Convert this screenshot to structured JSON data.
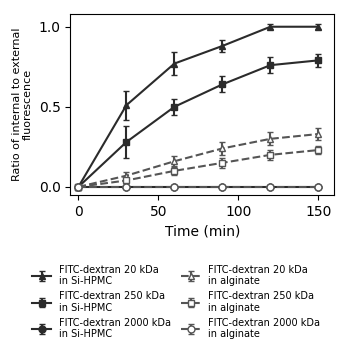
{
  "chart_data": {
    "type": "line",
    "title": "",
    "xlabel": "Time (min)",
    "ylabel": "Ratio of internal to external\nfluorescence",
    "xlim": [
      -5,
      160
    ],
    "ylim": [
      -0.05,
      1.08
    ],
    "xticks": [
      0,
      50,
      100,
      150
    ],
    "yticks": [
      0.0,
      0.5,
      1.0
    ],
    "legend": "lower center",
    "x": [
      0,
      30,
      60,
      90,
      120,
      150
    ],
    "series": [
      {
        "name": "FITC-dextran 20 kDa\nin Si-HPMC",
        "color": "#2b2b2b",
        "marker": "triangle",
        "line_style": "solid",
        "values": [
          0.0,
          0.51,
          0.77,
          0.88,
          1.0,
          1.0
        ],
        "errors": [
          0.0,
          0.09,
          0.07,
          0.04,
          0.015,
          0.015
        ]
      },
      {
        "name": "FITC-dextran 250 kDa\nin Si-HPMC",
        "color": "#2b2b2b",
        "marker": "square",
        "line_style": "solid",
        "values": [
          0.0,
          0.28,
          0.5,
          0.64,
          0.76,
          0.79
        ],
        "errors": [
          0.0,
          0.1,
          0.05,
          0.05,
          0.05,
          0.04
        ]
      },
      {
        "name": "FITC-dextran 2000 kDa\nin Si-HPMC",
        "color": "#2b2b2b",
        "marker": "circle",
        "line_style": "solid",
        "values": [
          0.0,
          0.0,
          0.0,
          0.0,
          0.0,
          0.0
        ],
        "errors": [
          0.0,
          0.0,
          0.0,
          0.0,
          0.0,
          0.0
        ]
      },
      {
        "name": "FITC-dextran 20 kDa\nin alginate",
        "color": "#555555",
        "marker": "triangle-open",
        "line_style": "dashed",
        "values": [
          0.0,
          0.07,
          0.16,
          0.24,
          0.3,
          0.33
        ],
        "errors": [
          0.0,
          0.02,
          0.03,
          0.04,
          0.04,
          0.04
        ]
      },
      {
        "name": "FITC-dextran 250 kDa\nin alginate",
        "color": "#555555",
        "marker": "square-open",
        "line_style": "dashed",
        "values": [
          0.0,
          0.04,
          0.1,
          0.15,
          0.2,
          0.23
        ],
        "errors": [
          0.0,
          0.015,
          0.025,
          0.03,
          0.03,
          0.025
        ]
      },
      {
        "name": "FITC-dextran 2000 kDa\nin alginate",
        "color": "#555555",
        "marker": "circle-open",
        "line_style": "dashed",
        "values": [
          0.0,
          0.0,
          0.0,
          0.0,
          0.0,
          0.0
        ],
        "errors": [
          0.0,
          0.0,
          0.0,
          0.0,
          0.0,
          0.0
        ]
      }
    ]
  }
}
